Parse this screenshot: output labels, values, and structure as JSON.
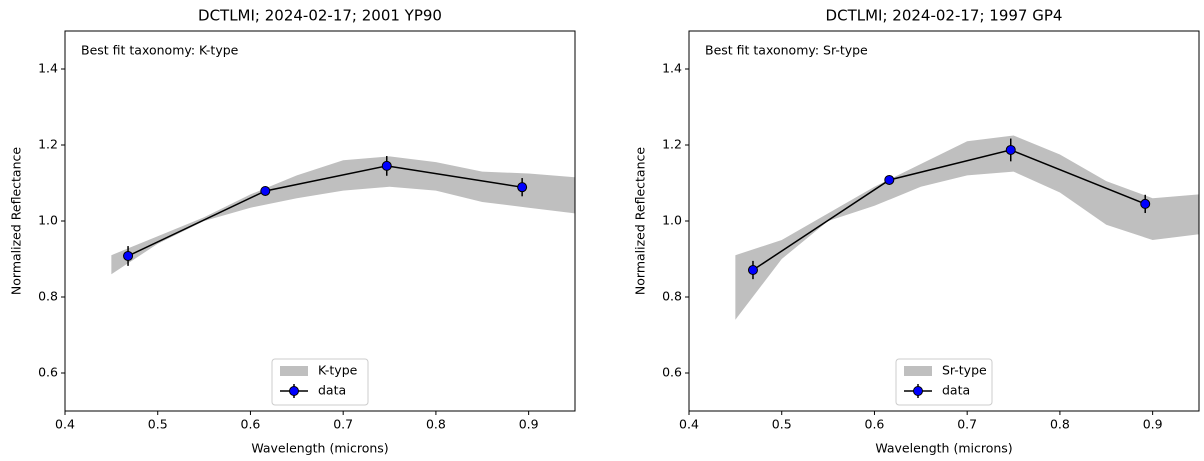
{
  "chart_data": [
    {
      "type": "line",
      "title": "DCTLMI;  2024-02-17;  2001 YP90",
      "annotation": "Best fit taxonomy: K-type",
      "xlabel": "Wavelength (microns)",
      "ylabel": "Normalized Reflectance",
      "xlim": [
        0.4,
        0.95
      ],
      "ylim": [
        0.5,
        1.5
      ],
      "xticks": [
        0.4,
        0.5,
        0.6,
        0.7,
        0.8,
        0.9
      ],
      "yticks": [
        0.6,
        0.8,
        {
          "value": 1,
          "label": "1.0"
        },
        1.2,
        1.4
      ],
      "legend": "lower center",
      "band": {
        "name": "K-type",
        "color": "#bfbfbf",
        "x": [
          0.45,
          0.5,
          0.55,
          0.6,
          0.65,
          0.7,
          0.75,
          0.8,
          0.85,
          0.9,
          0.95
        ],
        "upper": [
          0.91,
          0.96,
          1.01,
          1.07,
          1.12,
          1.16,
          1.17,
          1.155,
          1.13,
          1.125,
          1.115
        ],
        "lower": [
          0.86,
          0.94,
          1.0,
          1.035,
          1.06,
          1.08,
          1.09,
          1.08,
          1.05,
          1.035,
          1.02
        ]
      },
      "series": [
        {
          "name": "data",
          "color": "#0000ff",
          "x": [
            0.468,
            0.616,
            0.747,
            0.893
          ],
          "values": [
            0.908,
            1.079,
            1.145,
            1.089
          ],
          "errors": [
            0.026,
            0.01,
            0.026,
            0.024
          ]
        }
      ]
    },
    {
      "type": "line",
      "title": "DCTLMI;  2024-02-17;  1997 GP4",
      "annotation": "Best fit taxonomy: Sr-type",
      "xlabel": "Wavelength (microns)",
      "ylabel": "Normalized Reflectance",
      "xlim": [
        0.4,
        0.95
      ],
      "ylim": [
        0.5,
        1.5
      ],
      "xticks": [
        0.4,
        0.5,
        0.6,
        0.7,
        0.8,
        0.9
      ],
      "yticks": [
        0.6,
        0.8,
        {
          "value": 1,
          "label": "1.0"
        },
        1.2,
        1.4
      ],
      "legend": "lower center",
      "band": {
        "name": "Sr-type",
        "color": "#bfbfbf",
        "x": [
          0.45,
          0.5,
          0.55,
          0.6,
          0.65,
          0.7,
          0.75,
          0.8,
          0.85,
          0.9,
          0.95
        ],
        "upper": [
          0.91,
          0.95,
          1.02,
          1.09,
          1.15,
          1.21,
          1.225,
          1.175,
          1.105,
          1.06,
          1.07
        ],
        "lower": [
          0.74,
          0.9,
          1.0,
          1.04,
          1.09,
          1.12,
          1.13,
          1.075,
          0.99,
          0.95,
          0.965
        ]
      },
      "series": [
        {
          "name": "data",
          "color": "#0000ff",
          "x": [
            0.469,
            0.616,
            0.747,
            0.892
          ],
          "values": [
            0.871,
            1.108,
            1.187,
            1.045
          ],
          "errors": [
            0.024,
            0.01,
            0.03,
            0.024
          ]
        }
      ]
    }
  ]
}
